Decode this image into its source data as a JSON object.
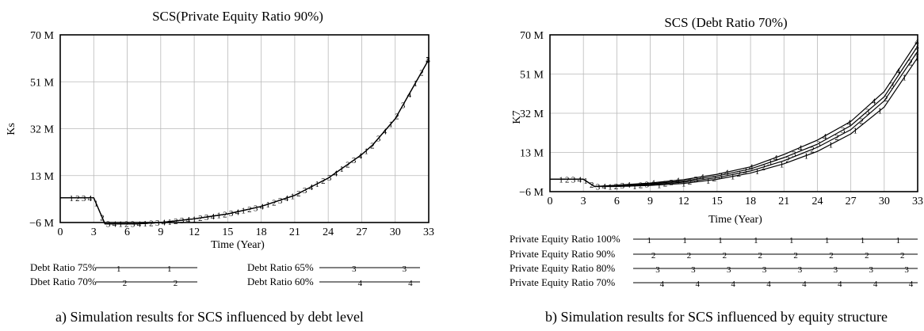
{
  "chart_data": [
    {
      "type": "line",
      "title": "SCS(Private Equity Ratio 90%)",
      "xlabel": "Time (Year)",
      "ylabel": "Ks",
      "xlim": [
        0,
        33
      ],
      "ylim": [
        -6,
        70
      ],
      "x_ticks": [
        0,
        3,
        6,
        9,
        12,
        15,
        18,
        21,
        24,
        27,
        30,
        33
      ],
      "y_ticks": [
        -6,
        13,
        32,
        51,
        70
      ],
      "y_tick_labels": [
        "−6 M",
        "13 M",
        "32 M",
        "51 M",
        "70 M"
      ],
      "grid": true,
      "legend_position": "bottom",
      "x": [
        0,
        3,
        4,
        7,
        9,
        12,
        15,
        18,
        21,
        24,
        27,
        28,
        30,
        33
      ],
      "series": [
        {
          "name": "Debt Ratio 75%",
          "marker": "1",
          "values": [
            4,
            4,
            -6.5,
            -6.5,
            -6,
            -4.5,
            -2.5,
            0.5,
            5,
            12,
            21.5,
            25.5,
            36,
            60
          ]
        },
        {
          "name": "Dbet Ratio 70%",
          "marker": "2",
          "values": [
            4,
            4,
            -6.5,
            -6.5,
            -6,
            -4.5,
            -2.5,
            0.5,
            5,
            12,
            21.5,
            25.5,
            36,
            60
          ]
        },
        {
          "name": "Debt Ratio 65%",
          "marker": "3",
          "values": [
            4,
            4,
            -6.5,
            -6.5,
            -6,
            -4.5,
            -2.5,
            0.5,
            5,
            12,
            21.5,
            25.5,
            36,
            60
          ]
        },
        {
          "name": "Debt Ratio 60%",
          "marker": "4",
          "values": [
            4,
            4,
            -6.5,
            -6.5,
            -6,
            -4.5,
            -2.5,
            0.5,
            5,
            12,
            21.5,
            25.5,
            36,
            60
          ]
        }
      ],
      "caption": "a) Simulation results for SCS influenced by debt level"
    },
    {
      "type": "line",
      "title": "SCS (Debt Ratio 70%)",
      "xlabel": "Time (Year)",
      "ylabel": "K7",
      "xlim": [
        0,
        33
      ],
      "ylim": [
        -6,
        70
      ],
      "x_ticks": [
        0,
        3,
        6,
        9,
        12,
        15,
        18,
        21,
        24,
        27,
        30,
        33
      ],
      "y_ticks": [
        -6,
        13,
        32,
        51,
        70
      ],
      "y_tick_labels": [
        "−6 M",
        "13 M",
        "32 M",
        "51 M",
        "70 M"
      ],
      "grid": true,
      "legend_position": "bottom",
      "x": [
        0,
        3,
        4,
        6,
        9,
        12,
        15,
        18,
        21,
        24,
        27,
        30,
        33
      ],
      "series": [
        {
          "name": "Private Equity Ratio 100%",
          "marker": "1",
          "values": [
            0,
            0,
            -3.5,
            -3.5,
            -3,
            -2,
            0,
            3,
            7.5,
            13.5,
            22,
            35,
            59
          ]
        },
        {
          "name": "Private Equity Ratio 90%",
          "marker": "2",
          "values": [
            0,
            0,
            -3.5,
            -3.3,
            -2.6,
            -1.4,
            0.8,
            4,
            9,
            15.5,
            24,
            38,
            62
          ]
        },
        {
          "name": "Private Equity Ratio 80%",
          "marker": "3",
          "values": [
            0,
            0,
            -3.5,
            -3.1,
            -2.2,
            -0.8,
            1.6,
            5,
            10.5,
            17,
            26,
            40,
            64.5
          ]
        },
        {
          "name": "Private Equity Ratio 70%",
          "marker": "4",
          "values": [
            0,
            0,
            -3.5,
            -2.9,
            -1.8,
            -0.2,
            2.4,
            6,
            12,
            19,
            28,
            42.5,
            67
          ]
        }
      ],
      "caption": "b) Simulation results for SCS influenced by equity structure"
    }
  ]
}
